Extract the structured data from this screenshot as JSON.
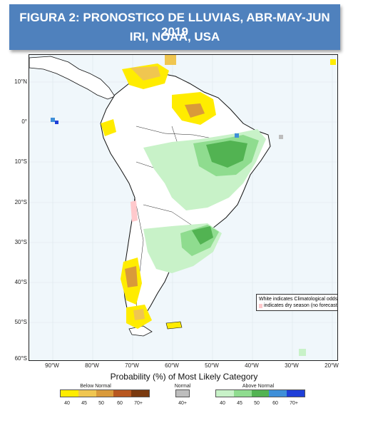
{
  "title": {
    "line1": "FIGURA 2: PRONOSTICO DE LLUVIAS, ABR-MAY-JUN 2019",
    "line2": "IRI, NOAA, USA"
  },
  "map": {
    "lat_labels": [
      "10°N",
      "0°",
      "10°S",
      "20°S",
      "30°S",
      "40°S",
      "50°S",
      "60°S"
    ],
    "lon_labels": [
      "90°W",
      "80°W",
      "70°W",
      "60°W",
      "50°W",
      "40°W",
      "30°W",
      "20°W"
    ],
    "notes": {
      "climatology": "White indicates Climatological odds",
      "dry_season": "indicates dry season (no forecast)"
    }
  },
  "legend": {
    "title": "Probability (%) of Most Likely Category",
    "below_normal": {
      "label": "Below Normal",
      "ticks": [
        "40",
        "45",
        "50",
        "60",
        "70+"
      ],
      "colors": [
        "#ffec00",
        "#f0c650",
        "#d99a3a",
        "#b8571f",
        "#7a3a10"
      ]
    },
    "normal": {
      "label": "Normal",
      "ticks": [
        "40+"
      ],
      "colors": [
        "#bdbdbd"
      ]
    },
    "above_normal": {
      "label": "Above Normal",
      "ticks": [
        "40",
        "45",
        "50",
        "60",
        "70+"
      ],
      "colors": [
        "#c8f2c8",
        "#8fdc8f",
        "#52b352",
        "#3f8fd8",
        "#1f3fd8"
      ]
    }
  }
}
